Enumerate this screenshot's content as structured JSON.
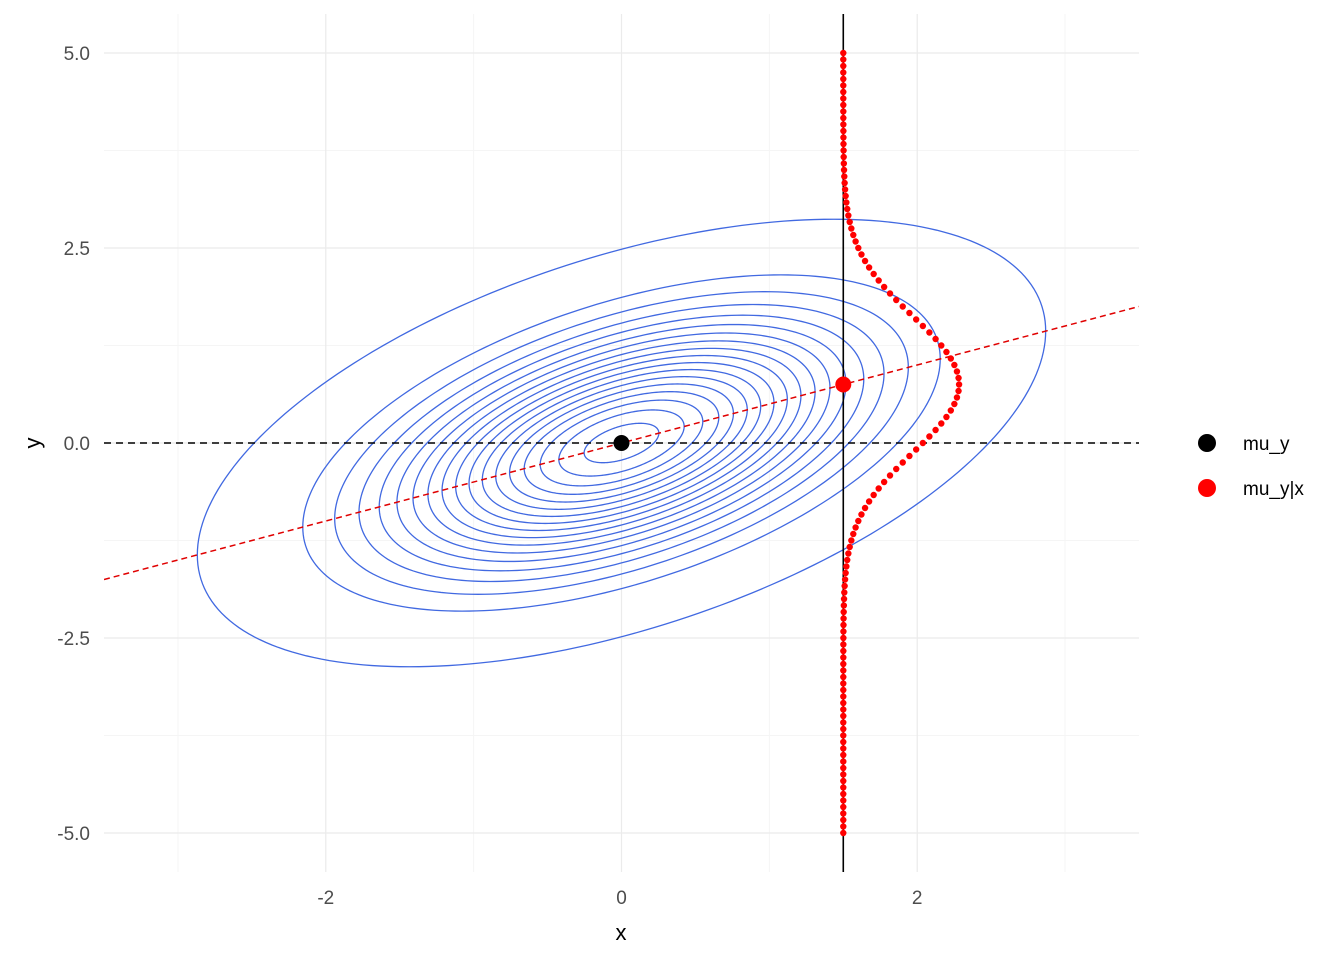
{
  "chart_data": {
    "type": "contour",
    "title": "",
    "xlabel": "x",
    "ylabel": "y",
    "xlim": [
      -3.5,
      3.5
    ],
    "ylim": [
      -5.5,
      5.5
    ],
    "x_ticks": [
      -2,
      0,
      2
    ],
    "x_tick_labels": [
      "-2",
      "0",
      "2"
    ],
    "y_ticks": [
      -5,
      -2.5,
      0,
      2.5,
      5
    ],
    "y_tick_labels": [
      "-5.0",
      "-2.5",
      "0.0",
      "2.5",
      "5.0"
    ],
    "grid": true,
    "legend_position": "right",
    "colors": {
      "contour": "#4169e1",
      "density_curve": "#ff0000",
      "regression_line": "#e00000",
      "mean_line": "#000000",
      "vline": "#000000",
      "grid_major": "#ebebeb",
      "grid_minor": "#f5f5f5"
    },
    "distribution": {
      "mu_x": 0,
      "mu_y": 0,
      "sigma_x": 1,
      "sigma_y": 1,
      "rho": 0.5
    },
    "contour_levels": [
      0.003,
      0.018,
      0.028,
      0.038,
      0.048,
      0.058,
      0.068,
      0.078,
      0.088,
      0.098,
      0.108,
      0.118,
      0.128,
      0.138,
      0.148,
      0.158,
      0.168,
      0.178
    ],
    "conditioning_x": 1.5,
    "density_curve": {
      "mean": 0.75,
      "sd": 0.866,
      "scale": 1.7,
      "y_range": [
        -5,
        5
      ],
      "n_points": 121
    },
    "regression_line": {
      "intercept": 0,
      "slope": 0.5
    },
    "mean_line_y": 0,
    "points": [
      {
        "series": "mu_y",
        "x": 0,
        "y": 0,
        "color": "#000000"
      },
      {
        "series": "mu_y|x",
        "x": 1.5,
        "y": 0.75,
        "color": "#ff0000"
      }
    ],
    "legend": [
      {
        "label": "mu_y",
        "color": "#000000"
      },
      {
        "label": "mu_y|x",
        "color": "#ff0000"
      }
    ]
  }
}
